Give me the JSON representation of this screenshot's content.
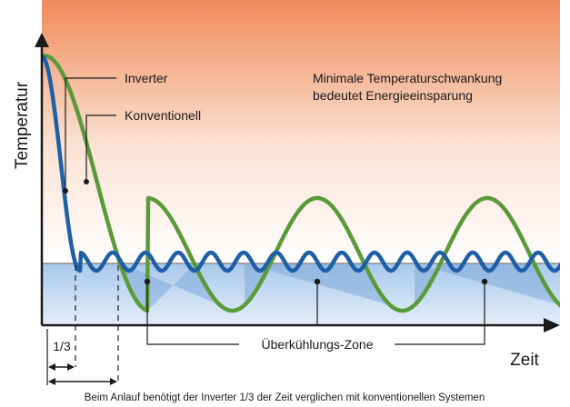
{
  "y_axis_label": "Temperatur",
  "x_axis_label": "Zeit",
  "legend": {
    "inverter": "Inverter",
    "conventional": "Konventionell"
  },
  "note_line1": "Minimale Temperaturschwankung",
  "note_line2": "bedeutet Energieeinsparung",
  "zone_label": "Überkühlungs-Zone",
  "fraction_label": "1/3",
  "caption": "Beim Anlauf benötigt der Inverter 1/3 der Zeit verglichen mit konventionellen Systemen",
  "colors": {
    "inverter": "#1f5fa8",
    "conventional": "#5a9a3a",
    "background_top": "#f08a5a",
    "zone_fill": "#a8c8ea",
    "setpoint_line": "#8a8a8a"
  }
}
